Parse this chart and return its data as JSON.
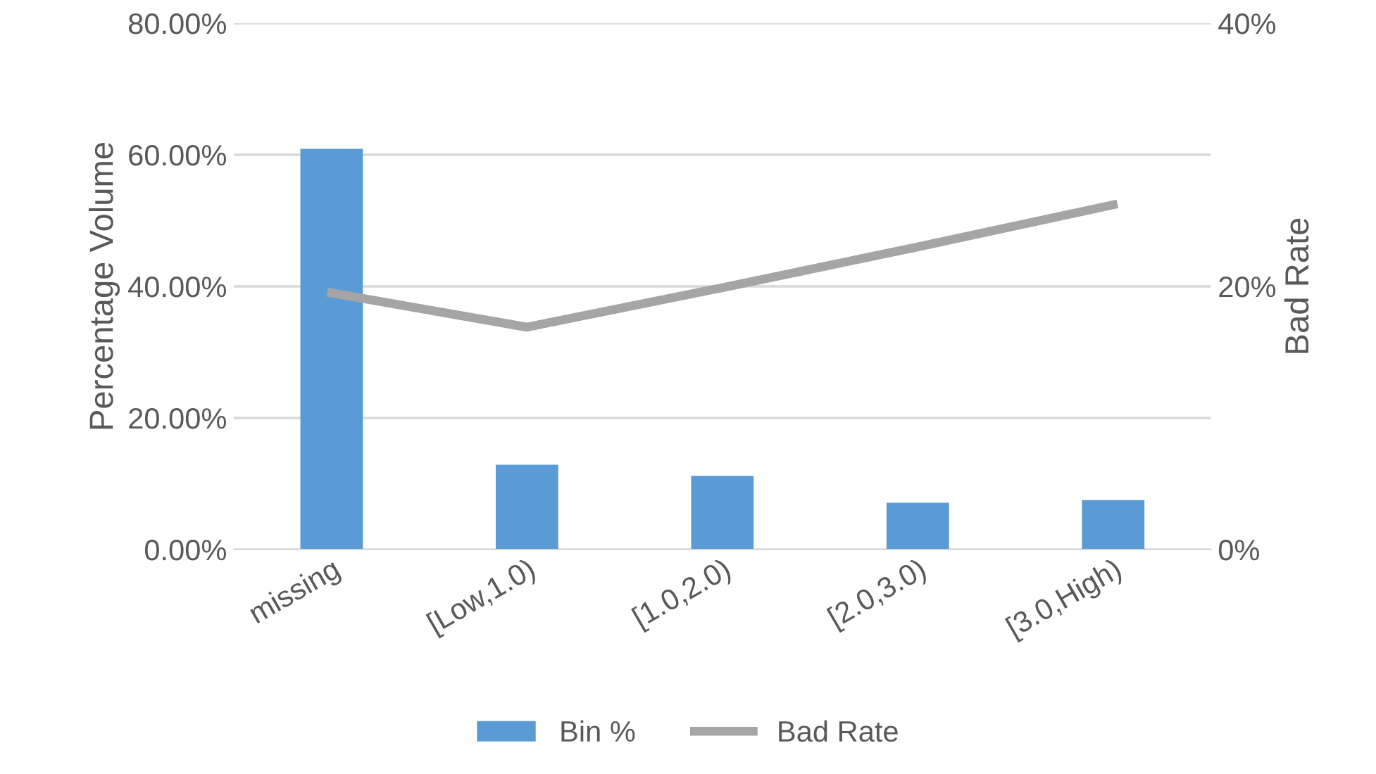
{
  "chart_data": {
    "type": "bar",
    "ylabel": "Percentage Volume",
    "y2label": "Bad Rate",
    "categories": [
      "missing",
      "[Low,1.0)",
      "[1.0,2.0)",
      "[2.0,3.0)",
      "[3.0,High)"
    ],
    "series": [
      {
        "name": "Bin %",
        "color": "#5b9bd5",
        "values": [
          60.9,
          12.9,
          11.2,
          7.1,
          7.5
        ]
      },
      {
        "name": "Bad Rate",
        "type": "line",
        "axis": "y2",
        "color": "#a5a5a5",
        "values": [
          19.5,
          16.9,
          19.9,
          23.0,
          26.2
        ]
      }
    ],
    "ylim": [
      0,
      80
    ],
    "yticks": [
      {
        "value": 0,
        "label": "0.00%"
      },
      {
        "value": 20,
        "label": "20.00%"
      },
      {
        "value": 40,
        "label": "40.00%"
      },
      {
        "value": 60,
        "label": "60.00%"
      },
      {
        "value": 80,
        "label": "80.00%"
      }
    ],
    "y2lim": [
      0,
      40
    ],
    "y2ticks": [
      {
        "value": 0,
        "label": "0%"
      },
      {
        "value": 20,
        "label": "20%"
      },
      {
        "value": 40,
        "label": "40%"
      }
    ],
    "grid": "y",
    "legend": "bottom",
    "marker": "none",
    "line_style": "solid"
  }
}
